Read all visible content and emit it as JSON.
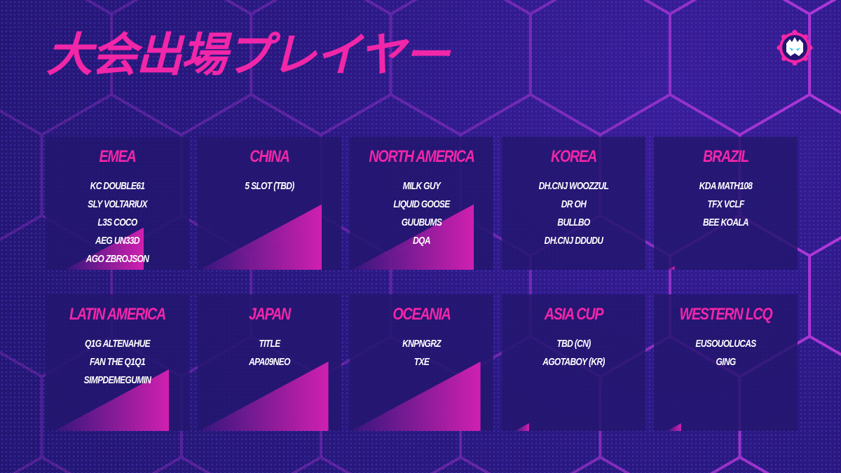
{
  "title": "大会出場プレイヤー",
  "logo": {
    "icon": "crowned-mask-gear-logo",
    "color": "#f226a8"
  },
  "colors": {
    "accent": "#f226a8",
    "background": "#2b1a86"
  },
  "regions": [
    {
      "name": "EMEA",
      "players": [
        "KC DOUBLE61",
        "SLY VOLTARIUX",
        "L3S COCO",
        "AEG UN33D",
        "AGO ZBROJSON"
      ],
      "fill": 0.55
    },
    {
      "name": "CHINA",
      "players": [
        "5 SLOT (TBD)"
      ],
      "fill": 0.85
    },
    {
      "name": "NORTH AMERICA",
      "players": [
        "MILK GUY",
        "LIQUID GOOSE",
        "GUUBUMS",
        "DQA"
      ],
      "fill": 0.85
    },
    {
      "name": "KOREA",
      "players": [
        "DH.CNJ WOOZZUL",
        "DR OH",
        "BULLBO",
        "DH.CNJ DDUDU"
      ],
      "fill": 0
    },
    {
      "name": "BRAZIL",
      "players": [
        "KDA MATH108",
        "TFX VCLF",
        "BEE KOALA"
      ],
      "fill": 0.05
    },
    {
      "name": "LATIN AMERICA",
      "players": [
        "Q1G ALTENAHUE",
        "FAN THE Q1Q1",
        "SIMPDEMEGUMIN"
      ],
      "fill": 0.8
    },
    {
      "name": "JAPAN",
      "players": [
        "TITLE",
        "APA09NEO"
      ],
      "fill": 0.9
    },
    {
      "name": "OCEANIA",
      "players": [
        "KNPNGRZ",
        "TXE"
      ],
      "fill": 0.9
    },
    {
      "name": "ASIA CUP",
      "players": [
        "TBD (CN)",
        "AGOTABOY (KR)"
      ],
      "fill": 0.1
    },
    {
      "name": "WESTERN LCQ",
      "players": [
        "EUSOUOLUCAS",
        "GING"
      ],
      "fill": 0.1
    }
  ]
}
